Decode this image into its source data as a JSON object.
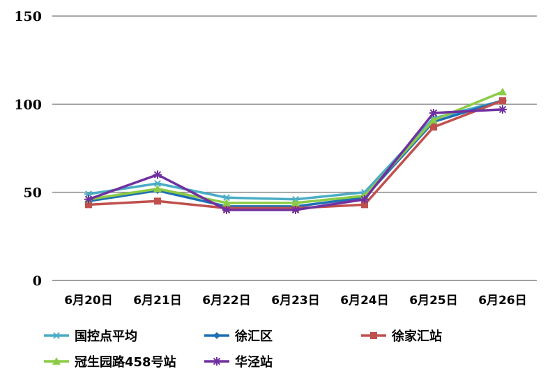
{
  "chart_data": {
    "type": "line",
    "title": "",
    "xlabel": "",
    "ylabel": "",
    "ylim": [
      0,
      150
    ],
    "yticks": [
      0,
      50,
      100,
      150
    ],
    "grid": true,
    "legend_position": "bottom",
    "categories": [
      "6月20日",
      "6月21日",
      "6月22日",
      "6月23日",
      "6月24日",
      "6月25日",
      "6月26日"
    ],
    "series": [
      {
        "name": "国控点平均",
        "color": "#4BACC6",
        "marker": "asterisk",
        "values": [
          49,
          55,
          47,
          46,
          50,
          92,
          102
        ]
      },
      {
        "name": "徐汇区",
        "color": "#1F6FB4",
        "marker": "diamond",
        "values": [
          45,
          51,
          42,
          42,
          47,
          90,
          102
        ]
      },
      {
        "name": "徐家汇站",
        "color": "#C0504D",
        "marker": "square",
        "values": [
          43,
          45,
          41,
          41,
          43,
          87,
          102
        ]
      },
      {
        "name": "冠生园路458号站",
        "color": "#8CCB45",
        "marker": "triangle",
        "values": [
          46,
          52,
          44,
          44,
          48,
          91,
          107
        ]
      },
      {
        "name": "华泾站",
        "color": "#7030A0",
        "marker": "star",
        "values": [
          46,
          60,
          40,
          40,
          46,
          95,
          97
        ]
      }
    ]
  }
}
